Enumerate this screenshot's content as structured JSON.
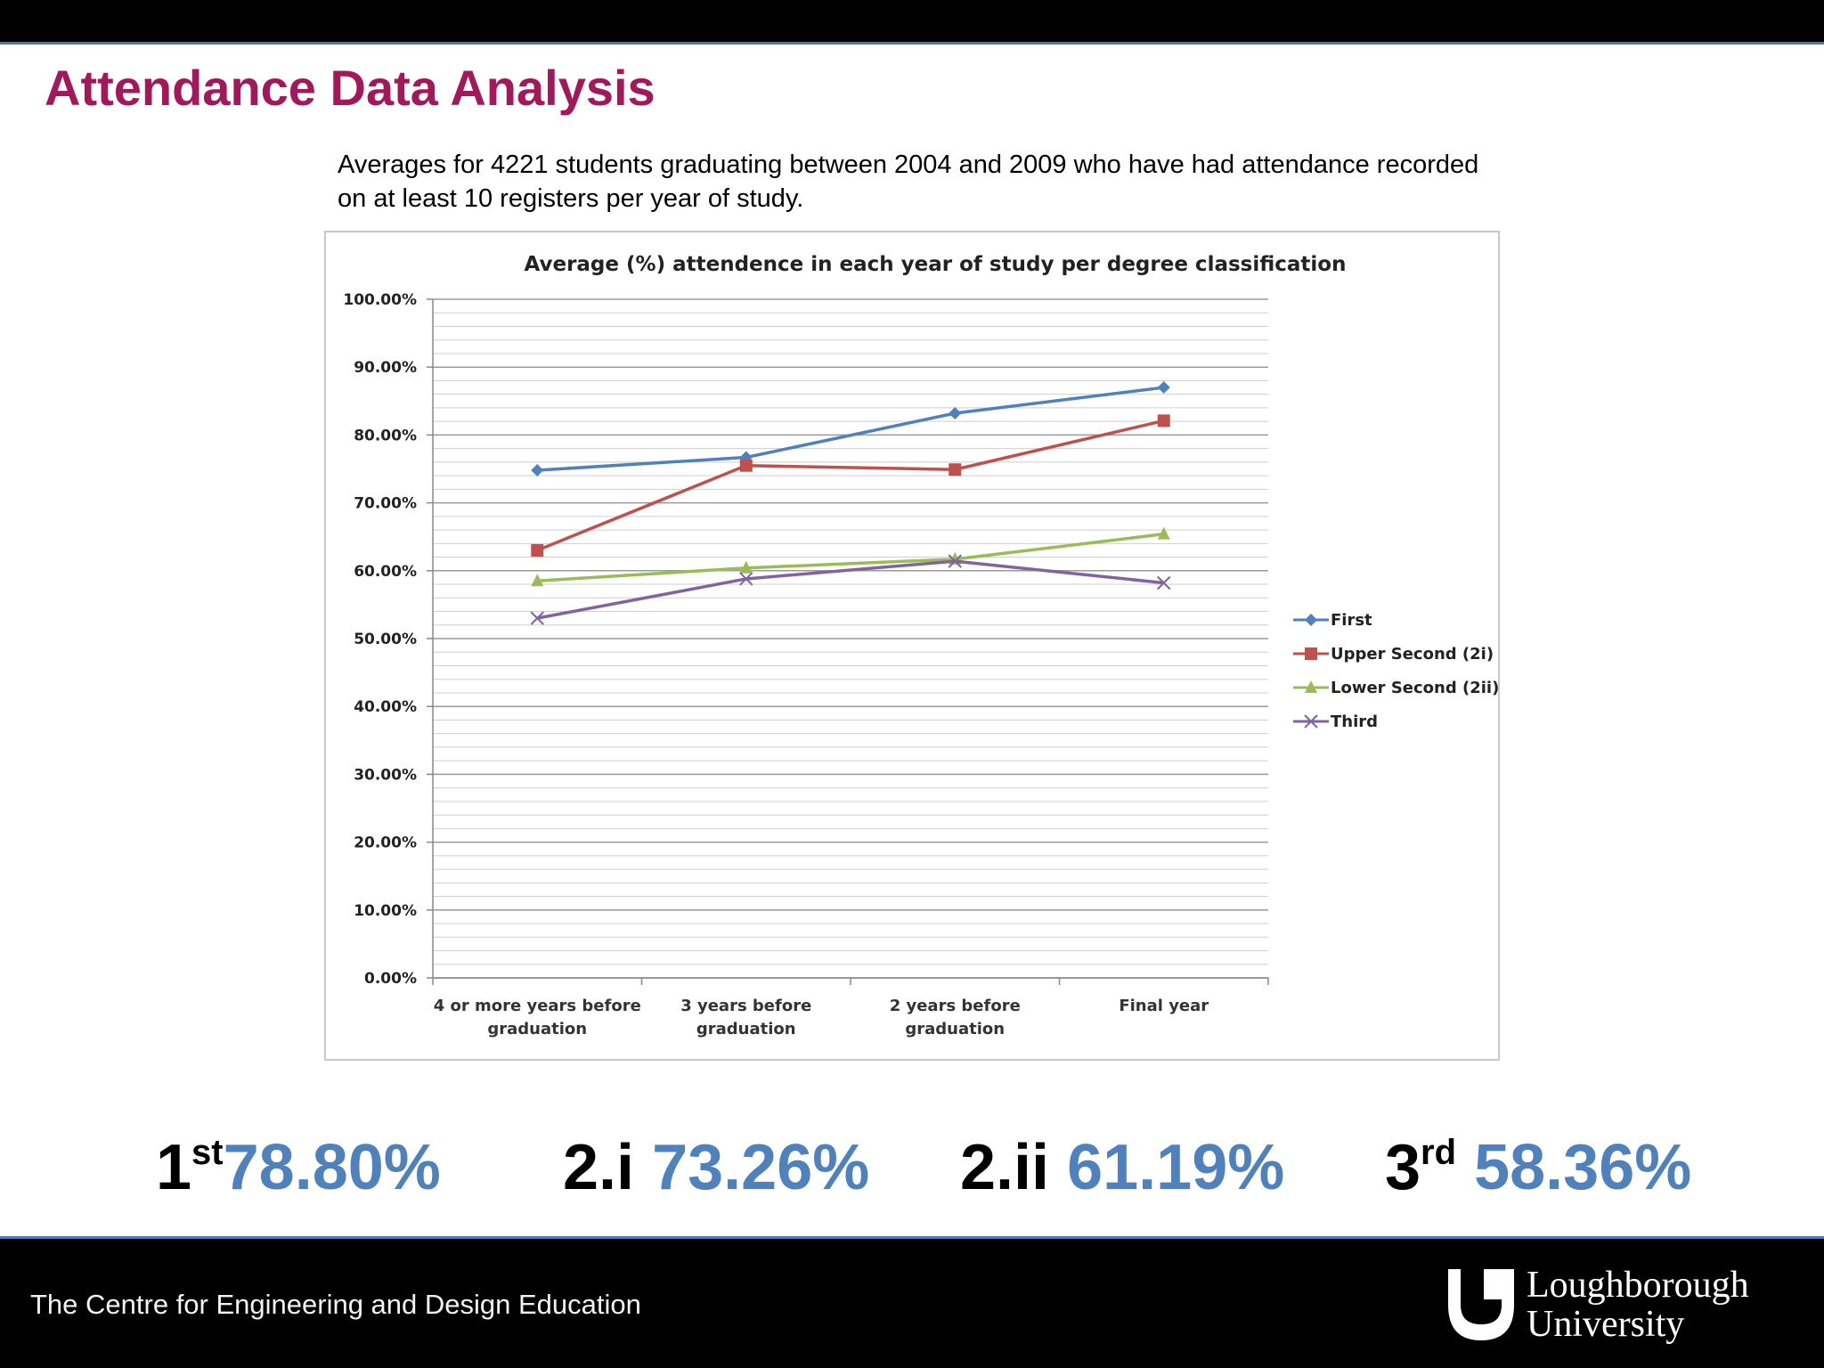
{
  "slide": {
    "title": "Attendance Data Analysis",
    "subtitle": "Averages for 4221 students graduating between 2004 and 2009 who have had attendance recorded on at least 10 registers per year of study."
  },
  "chart_data": {
    "type": "line",
    "title": "Average (%) attendence in each year of study per degree classification",
    "categories": [
      [
        "4 or more years before",
        "graduation"
      ],
      [
        "3 years before",
        "graduation"
      ],
      [
        "2 years before",
        "graduation"
      ],
      [
        "Final year"
      ]
    ],
    "y_ticks": [
      "0.00%",
      "10.00%",
      "20.00%",
      "30.00%",
      "40.00%",
      "50.00%",
      "60.00%",
      "70.00%",
      "80.00%",
      "90.00%",
      "100.00%"
    ],
    "ylim": [
      0,
      100
    ],
    "grid": true,
    "legend_position": "right",
    "series": [
      {
        "name": "First",
        "values": [
          74.8,
          76.7,
          83.2,
          87.0
        ],
        "color": "#4f81bd",
        "marker": "diamond"
      },
      {
        "name": "Upper Second (2i)",
        "values": [
          63.0,
          75.5,
          74.9,
          82.1
        ],
        "color": "#c0504d",
        "marker": "square"
      },
      {
        "name": "Lower Second (2ii)",
        "values": [
          58.5,
          60.4,
          61.7,
          65.4
        ],
        "color": "#9bbb59",
        "marker": "triangle"
      },
      {
        "name": "Third",
        "values": [
          53.0,
          58.8,
          61.4,
          58.2
        ],
        "color": "#8064a2",
        "marker": "x"
      }
    ]
  },
  "stats": [
    {
      "class_main": "1",
      "class_sup": "st",
      "value": "78.80%"
    },
    {
      "class_main": "2.i",
      "class_sup": "",
      "value": "73.26%"
    },
    {
      "class_main": "2.ii",
      "class_sup": "",
      "value": "61.19%"
    },
    {
      "class_main": "3",
      "class_sup": "rd",
      "value": "58.36%"
    }
  ],
  "footer": {
    "centre": "The Centre for Engineering and Design Education",
    "logo_line1": "Loughborough",
    "logo_line2": "University"
  },
  "colors": {
    "title": "#a3185a",
    "stat_value": "#4f81bd",
    "bar": "#000000",
    "bar_border": "#4a78b8"
  }
}
